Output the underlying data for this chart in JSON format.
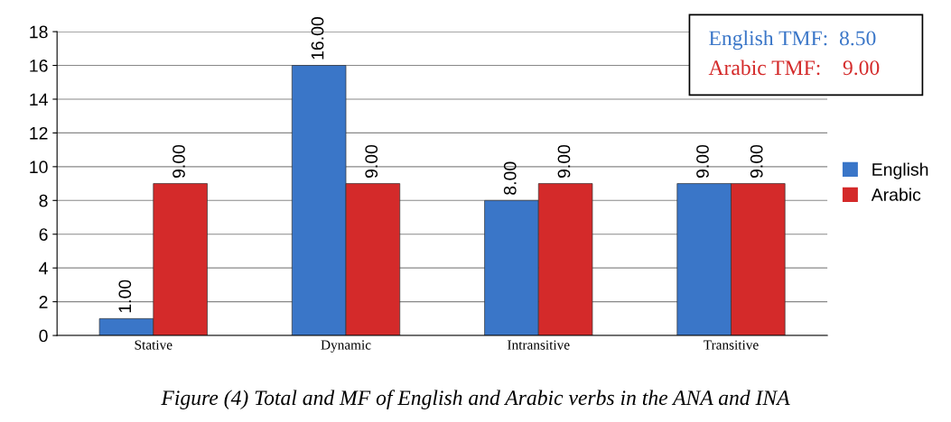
{
  "chart_data": {
    "type": "bar",
    "categories": [
      "Stative",
      "Dynamic",
      "Intransitive",
      "Transitive"
    ],
    "series": [
      {
        "name": "English",
        "color": "#3a76c8",
        "values": [
          1,
          16,
          8,
          9
        ],
        "value_labels": [
          "1.00",
          "16.00",
          "8.00",
          "9.00"
        ]
      },
      {
        "name": "Arabic",
        "color": "#d42a2a",
        "values": [
          9,
          9,
          9,
          9
        ],
        "value_labels": [
          "9.00",
          "9.00",
          "9.00",
          "9.00"
        ]
      }
    ],
    "ylim": [
      0,
      18
    ],
    "yticks": [
      0,
      2,
      4,
      6,
      8,
      10,
      12,
      14,
      16,
      18
    ],
    "grid": "y",
    "legend": "right",
    "annotations": [
      "English TMF:  8.50",
      "Arabic TMF:    9.00",
      "Figure (4) Total and MF of English and Arabic verbs in the ANA and INA"
    ]
  }
}
